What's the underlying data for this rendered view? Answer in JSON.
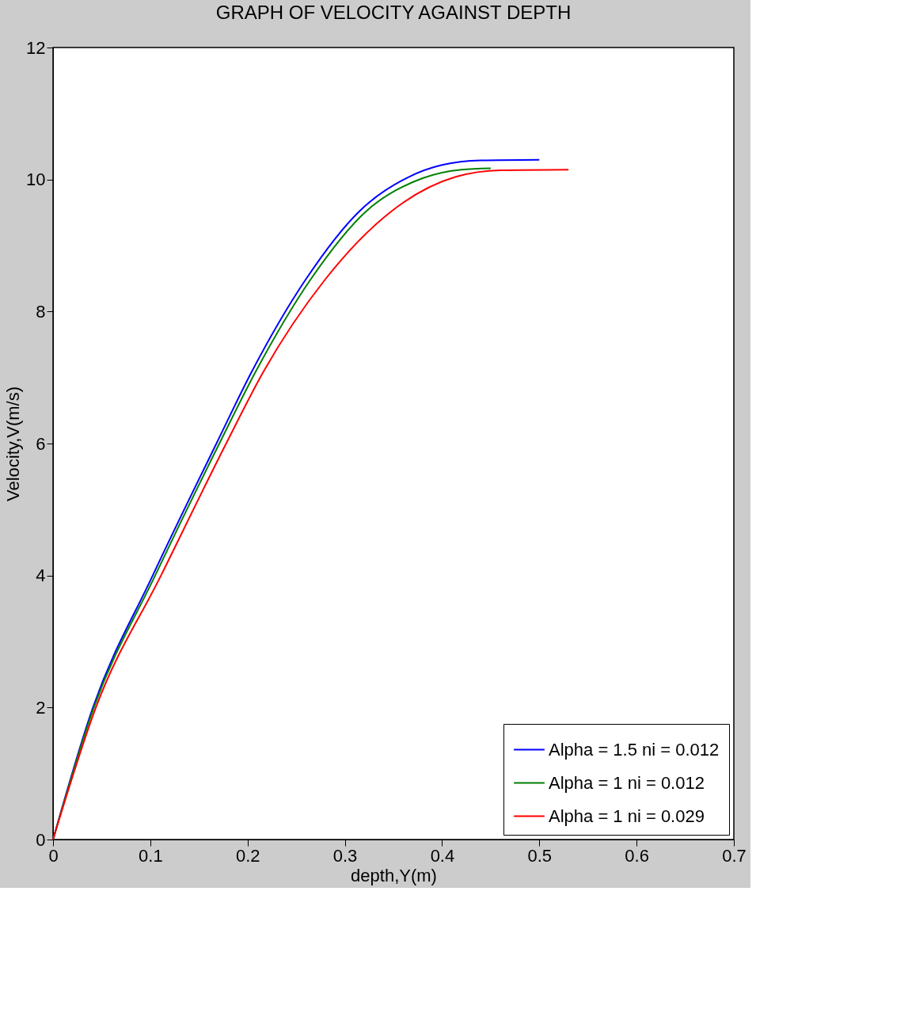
{
  "chart_data": {
    "type": "line",
    "title": "GRAPH OF VELOCITY AGAINST DEPTH",
    "xlabel": "depth,Y(m)",
    "ylabel": "Velocity,V(m/s)",
    "xlim": [
      0,
      0.7
    ],
    "xticks": [
      0,
      0.1,
      0.2,
      0.3,
      0.4,
      0.5,
      0.6,
      0.7
    ],
    "ylim": [
      0,
      12
    ],
    "yticks": [
      0,
      2,
      4,
      6,
      8,
      10,
      12
    ],
    "grid": false,
    "legend": "bottom right",
    "marker": "none",
    "line_style": "solid",
    "series": [
      {
        "name": "Alpha = 1.5 ni = 0.012",
        "color": "#0000ff",
        "x": [
          0,
          0.041,
          0.1025,
          0.168,
          0.204,
          0.26,
          0.315,
          0.366,
          0.4,
          0.44,
          0.5
        ],
        "values": [
          0,
          2,
          4,
          6,
          7.08,
          8.49,
          9.52,
          10.04,
          10.22,
          10.29,
          10.3
        ]
      },
      {
        "name": "Alpha = 1 ni = 0.012",
        "color": "#008000",
        "x": [
          0,
          0.042,
          0.105,
          0.171,
          0.208,
          0.265,
          0.322,
          0.38,
          0.42,
          0.45
        ],
        "values": [
          0,
          2,
          4,
          6,
          7.08,
          8.49,
          9.52,
          10.02,
          10.15,
          10.17
        ]
      },
      {
        "name": "Alpha = 1 ni = 0.029",
        "color": "#ff0000",
        "x": [
          0,
          0.044,
          0.111,
          0.178,
          0.216,
          0.28,
          0.348,
          0.414,
          0.46,
          0.53
        ],
        "values": [
          0,
          2,
          4,
          6,
          7.08,
          8.49,
          9.52,
          10.04,
          10.14,
          10.15
        ]
      }
    ]
  }
}
